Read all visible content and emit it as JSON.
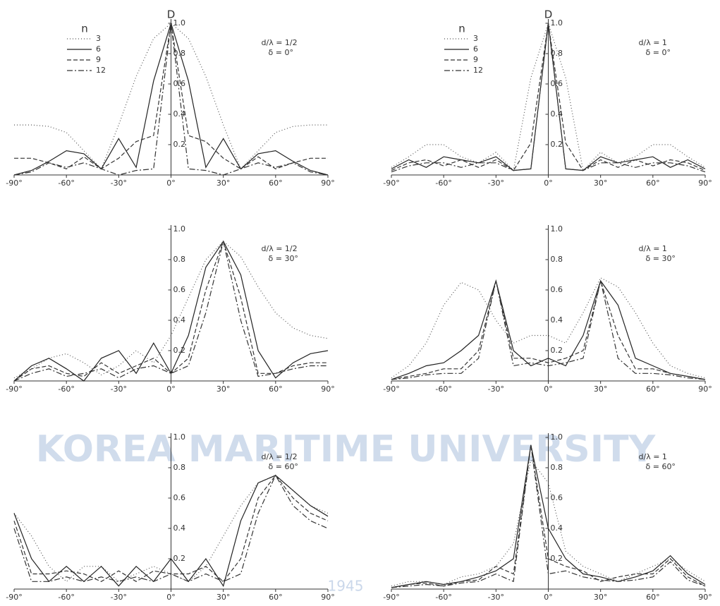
{
  "watermark": {
    "text": "KOREA MARITIME UNIVERSITY",
    "year": "1945"
  },
  "chart_data": [
    {
      "type": "line",
      "y_label": "D",
      "legend_title": "n",
      "annotations": [
        "d/λ = 1/2",
        "δ = 0°"
      ],
      "x": [
        -90,
        -80,
        -70,
        -60,
        -50,
        -40,
        -30,
        -20,
        -10,
        0,
        10,
        20,
        30,
        40,
        50,
        60,
        70,
        80,
        90
      ],
      "xlim": [
        -90,
        90
      ],
      "xticks": [
        {
          "value": -90,
          "label": "-90°"
        },
        {
          "value": -60,
          "label": "-60°"
        },
        {
          "value": -30,
          "label": "-30°"
        },
        {
          "value": 0,
          "label": "0°"
        },
        {
          "value": 30,
          "label": "30°"
        },
        {
          "value": 60,
          "label": "60°"
        },
        {
          "value": 90,
          "label": "90°"
        }
      ],
      "ylim": [
        0,
        1
      ],
      "yticks": [
        0.2,
        0.4,
        0.6,
        0.8,
        {
          "value": 1,
          "label": "1.0"
        }
      ],
      "series": [
        {
          "name": "3",
          "color": "#555555",
          "dash": "1,3",
          "values": [
            0.33,
            0.33,
            0.32,
            0.28,
            0.16,
            0.04,
            0.33,
            0.65,
            0.9,
            1,
            0.9,
            0.65,
            0.33,
            0.04,
            0.16,
            0.28,
            0.32,
            0.33,
            0.33
          ]
        },
        {
          "name": "6",
          "color": "#222222",
          "dash": "none",
          "values": [
            0,
            0.03,
            0.09,
            0.16,
            0.14,
            0.04,
            0.24,
            0.05,
            0.62,
            1,
            0.62,
            0.05,
            0.24,
            0.04,
            0.14,
            0.16,
            0.09,
            0.03,
            0
          ]
        },
        {
          "name": "9",
          "color": "#333333",
          "dash": "6,3",
          "values": [
            0.11,
            0.11,
            0.08,
            0.04,
            0.12,
            0.04,
            0.11,
            0.22,
            0.26,
            1,
            0.26,
            0.22,
            0.11,
            0.04,
            0.12,
            0.04,
            0.08,
            0.11,
            0.11
          ]
        },
        {
          "name": "12",
          "color": "#333333",
          "dash": "8,3,2,3",
          "values": [
            0,
            0.02,
            0.08,
            0.05,
            0.08,
            0.04,
            0,
            0.03,
            0.04,
            1,
            0.04,
            0.03,
            0,
            0.04,
            0.08,
            0.05,
            0.08,
            0.02,
            0
          ]
        }
      ]
    },
    {
      "type": "line",
      "y_label": "D",
      "legend_title": "n",
      "annotations": [
        "d/λ = 1",
        "δ = 0°"
      ],
      "x": [
        -90,
        -80,
        -70,
        -60,
        -50,
        -40,
        -30,
        -20,
        -10,
        0,
        10,
        20,
        30,
        40,
        50,
        60,
        70,
        80,
        90
      ],
      "xlim": [
        -90,
        90
      ],
      "xticks": [
        {
          "value": -90,
          "label": "-90°"
        },
        {
          "value": -60,
          "label": "-60°"
        },
        {
          "value": -30,
          "label": "-30°"
        },
        {
          "value": 0,
          "label": "0°"
        },
        {
          "value": 30,
          "label": "30°"
        },
        {
          "value": 60,
          "label": "60°"
        },
        {
          "value": 90,
          "label": "90°"
        }
      ],
      "ylim": [
        0,
        1
      ],
      "yticks": [
        0.2,
        0.4,
        0.6,
        0.8,
        {
          "value": 1,
          "label": "1.0"
        }
      ],
      "series": [
        {
          "name": "3",
          "color": "#555555",
          "dash": "1,3",
          "values": [
            0.05,
            0.12,
            0.2,
            0.2,
            0.12,
            0.08,
            0.15,
            0.03,
            0.64,
            1,
            0.64,
            0.03,
            0.15,
            0.08,
            0.12,
            0.2,
            0.2,
            0.12,
            0.05
          ]
        },
        {
          "name": "6",
          "color": "#222222",
          "dash": "none",
          "values": [
            0.04,
            0.1,
            0.05,
            0.12,
            0.1,
            0.08,
            0.12,
            0.03,
            0.04,
            1,
            0.04,
            0.03,
            0.12,
            0.08,
            0.1,
            0.12,
            0.05,
            0.1,
            0.04
          ]
        },
        {
          "name": "9",
          "color": "#333333",
          "dash": "6,3",
          "values": [
            0.03,
            0.08,
            0.1,
            0.06,
            0.1,
            0.05,
            0.1,
            0.03,
            0.21,
            1,
            0.21,
            0.03,
            0.1,
            0.05,
            0.1,
            0.06,
            0.1,
            0.08,
            0.03
          ]
        },
        {
          "name": "12",
          "color": "#333333",
          "dash": "8,3,2,3",
          "values": [
            0.02,
            0.06,
            0.08,
            0.08,
            0.05,
            0.08,
            0.08,
            0.03,
            0.04,
            1,
            0.04,
            0.03,
            0.08,
            0.08,
            0.05,
            0.08,
            0.08,
            0.06,
            0.02
          ]
        }
      ]
    },
    {
      "type": "line",
      "annotations": [
        "d/λ = 1/2",
        "δ = 30°"
      ],
      "x": [
        -90,
        -80,
        -70,
        -60,
        -50,
        -40,
        -30,
        -20,
        -10,
        0,
        10,
        20,
        30,
        40,
        50,
        60,
        70,
        80,
        90
      ],
      "xlim": [
        -90,
        90
      ],
      "xticks": [
        {
          "value": -90,
          "label": "-90°"
        },
        {
          "value": -60,
          "label": "-60°"
        },
        {
          "value": -30,
          "label": "-30°"
        },
        {
          "value": 0,
          "label": "0°"
        },
        {
          "value": 30,
          "label": "30°"
        },
        {
          "value": 60,
          "label": "60°"
        },
        {
          "value": 90,
          "label": "90°"
        }
      ],
      "ylim": [
        0,
        1
      ],
      "yticks": [
        0.2,
        0.4,
        0.6,
        0.8,
        {
          "value": 1,
          "label": "1.0"
        }
      ],
      "series": [
        {
          "color": "#555555",
          "dash": "1,3",
          "values": [
            0.02,
            0.08,
            0.15,
            0.18,
            0.12,
            0.04,
            0.1,
            0.2,
            0.12,
            0.3,
            0.55,
            0.8,
            0.92,
            0.82,
            0.62,
            0.45,
            0.35,
            0.3,
            0.28
          ]
        },
        {
          "color": "#222222",
          "dash": "none",
          "values": [
            0,
            0.1,
            0.15,
            0.08,
            0,
            0.15,
            0.2,
            0.05,
            0.25,
            0.05,
            0.3,
            0.75,
            0.92,
            0.7,
            0.2,
            0.02,
            0.12,
            0.18,
            0.2
          ]
        },
        {
          "color": "#333333",
          "dash": "6,3",
          "values": [
            0,
            0.08,
            0.1,
            0.05,
            0.03,
            0.12,
            0.05,
            0.1,
            0.15,
            0.05,
            0.15,
            0.6,
            0.92,
            0.55,
            0.05,
            0.05,
            0.1,
            0.12,
            0.12
          ]
        },
        {
          "color": "#333333",
          "dash": "8,3,2,3",
          "values": [
            0,
            0.05,
            0.08,
            0.03,
            0.05,
            0.08,
            0.02,
            0.08,
            0.1,
            0.05,
            0.1,
            0.45,
            0.92,
            0.4,
            0.03,
            0.05,
            0.08,
            0.1,
            0.1
          ]
        }
      ]
    },
    {
      "type": "line",
      "annotations": [
        "d/λ = 1",
        "δ = 30°"
      ],
      "x": [
        -90,
        -80,
        -70,
        -60,
        -50,
        -40,
        -30,
        -20,
        -10,
        0,
        10,
        20,
        30,
        40,
        50,
        60,
        70,
        80,
        90
      ],
      "xlim": [
        -90,
        90
      ],
      "xticks": [
        {
          "value": -90,
          "label": "-90°"
        },
        {
          "value": -60,
          "label": "-60°"
        },
        {
          "value": -30,
          "label": "-30°"
        },
        {
          "value": 0,
          "label": "0°"
        },
        {
          "value": 30,
          "label": "30°"
        },
        {
          "value": 60,
          "label": "60°"
        },
        {
          "value": 90,
          "label": "90°"
        }
      ],
      "ylim": [
        0,
        1
      ],
      "yticks": [
        0.2,
        0.4,
        0.6,
        0.8,
        {
          "value": 1,
          "label": "1.0"
        }
      ],
      "series": [
        {
          "color": "#555555",
          "dash": "1,3",
          "values": [
            0.02,
            0.1,
            0.25,
            0.5,
            0.65,
            0.6,
            0.4,
            0.25,
            0.3,
            0.3,
            0.25,
            0.45,
            0.68,
            0.62,
            0.45,
            0.25,
            0.1,
            0.05,
            0.02
          ]
        },
        {
          "color": "#222222",
          "dash": "none",
          "values": [
            0.01,
            0.05,
            0.1,
            0.12,
            0.2,
            0.3,
            0.66,
            0.2,
            0.1,
            0.15,
            0.1,
            0.3,
            0.66,
            0.5,
            0.15,
            0.1,
            0.05,
            0.03,
            0.01
          ]
        },
        {
          "color": "#333333",
          "dash": "6,3",
          "values": [
            0.01,
            0.03,
            0.05,
            0.08,
            0.08,
            0.2,
            0.66,
            0.15,
            0.15,
            0.12,
            0.15,
            0.2,
            0.66,
            0.3,
            0.08,
            0.08,
            0.05,
            0.03,
            0.01
          ]
        },
        {
          "color": "#333333",
          "dash": "8,3,2,3",
          "values": [
            0.01,
            0.02,
            0.04,
            0.05,
            0.05,
            0.15,
            0.66,
            0.1,
            0.12,
            0.1,
            0.12,
            0.15,
            0.66,
            0.15,
            0.05,
            0.05,
            0.04,
            0.02,
            0.01
          ]
        }
      ]
    },
    {
      "type": "line",
      "annotations": [
        "d/λ = 1/2",
        "δ = 60°"
      ],
      "x": [
        -90,
        -80,
        -70,
        -60,
        -50,
        -40,
        -30,
        -20,
        -10,
        0,
        10,
        20,
        30,
        40,
        50,
        60,
        70,
        80,
        90
      ],
      "xlim": [
        -90,
        90
      ],
      "xticks": [
        {
          "value": -90,
          "label": "-90°"
        },
        {
          "value": -60,
          "label": "-60°"
        },
        {
          "value": -30,
          "label": "-30°"
        },
        {
          "value": 0,
          "label": "0°"
        },
        {
          "value": 30,
          "label": "30°"
        },
        {
          "value": 60,
          "label": "60°"
        },
        {
          "value": 90,
          "label": "90°"
        }
      ],
      "ylim": [
        0,
        1
      ],
      "yticks": [
        0.2,
        0.4,
        0.6,
        0.8,
        {
          "value": 1,
          "label": "1.0"
        }
      ],
      "series": [
        {
          "color": "#555555",
          "dash": "1,3",
          "values": [
            0.5,
            0.35,
            0.15,
            0.05,
            0.15,
            0.15,
            0.05,
            0.1,
            0.15,
            0.1,
            0.05,
            0.15,
            0.35,
            0.55,
            0.7,
            0.75,
            0.65,
            0.55,
            0.5
          ]
        },
        {
          "color": "#222222",
          "dash": "none",
          "values": [
            0.5,
            0.2,
            0.05,
            0.15,
            0.05,
            0.15,
            0.02,
            0.15,
            0.05,
            0.2,
            0.05,
            0.2,
            0.02,
            0.45,
            0.7,
            0.75,
            0.65,
            0.55,
            0.48
          ]
        },
        {
          "color": "#333333",
          "dash": "6,3",
          "values": [
            0.45,
            0.1,
            0.1,
            0.12,
            0.1,
            0.05,
            0.12,
            0.05,
            0.12,
            0.1,
            0.1,
            0.15,
            0.05,
            0.2,
            0.6,
            0.75,
            0.6,
            0.5,
            0.45
          ]
        },
        {
          "color": "#333333",
          "dash": "8,3,2,3",
          "values": [
            0.4,
            0.05,
            0.05,
            0.08,
            0.05,
            0.08,
            0.05,
            0.08,
            0.05,
            0.1,
            0.05,
            0.1,
            0.05,
            0.1,
            0.5,
            0.75,
            0.55,
            0.45,
            0.4
          ]
        }
      ]
    },
    {
      "type": "line",
      "annotations": [
        "d/λ = 1",
        "δ = 60°"
      ],
      "x": [
        -90,
        -80,
        -70,
        -60,
        -50,
        -40,
        -30,
        -20,
        -10,
        0,
        10,
        20,
        30,
        40,
        50,
        60,
        70,
        80,
        90
      ],
      "xlim": [
        -90,
        90
      ],
      "xticks": [
        {
          "value": -90,
          "label": "-90°"
        },
        {
          "value": -60,
          "label": "-60°"
        },
        {
          "value": -30,
          "label": "-30°"
        },
        {
          "value": 0,
          "label": "0°"
        },
        {
          "value": 30,
          "label": "30°"
        },
        {
          "value": 60,
          "label": "60°"
        },
        {
          "value": 90,
          "label": "90°"
        }
      ],
      "ylim": [
        0,
        1
      ],
      "yticks": [
        0.2,
        0.4,
        0.6,
        0.8,
        {
          "value": 1,
          "label": "1.0"
        }
      ],
      "series": [
        {
          "color": "#555555",
          "dash": "1,3",
          "values": [
            0.02,
            0.05,
            0.05,
            0.03,
            0.08,
            0.1,
            0.15,
            0.3,
            0.85,
            0.7,
            0.25,
            0.15,
            0.1,
            0.05,
            0.1,
            0.15,
            0.2,
            0.12,
            0.05
          ]
        },
        {
          "color": "#222222",
          "dash": "none",
          "values": [
            0.01,
            0.03,
            0.05,
            0.03,
            0.05,
            0.08,
            0.12,
            0.2,
            0.95,
            0.4,
            0.2,
            0.1,
            0.08,
            0.05,
            0.08,
            0.12,
            0.22,
            0.1,
            0.03
          ]
        },
        {
          "color": "#333333",
          "dash": "6,3",
          "values": [
            0.01,
            0.03,
            0.04,
            0.02,
            0.05,
            0.06,
            0.15,
            0.1,
            0.95,
            0.2,
            0.15,
            0.12,
            0.05,
            0.08,
            0.1,
            0.1,
            0.2,
            0.08,
            0.02
          ]
        },
        {
          "color": "#333333",
          "dash": "8,3,2,3",
          "values": [
            0.01,
            0.02,
            0.03,
            0.02,
            0.04,
            0.05,
            0.1,
            0.05,
            0.95,
            0.1,
            0.12,
            0.08,
            0.06,
            0.05,
            0.06,
            0.08,
            0.18,
            0.06,
            0.02
          ]
        }
      ]
    }
  ]
}
